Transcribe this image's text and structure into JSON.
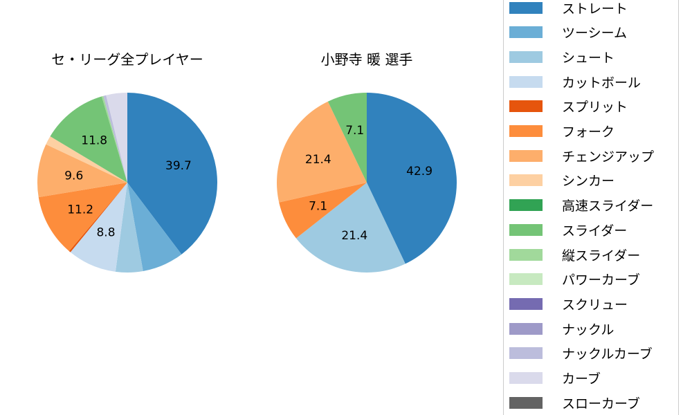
{
  "chart_data": [
    {
      "type": "pie",
      "title": "セ・リーグ全プレイヤー",
      "center": [
        184,
        264
      ],
      "radius": 130,
      "labels": [
        "ストレート",
        "ツーシーム",
        "シュート",
        "カットボール",
        "スプリット",
        "フォーク",
        "チェンジアップ",
        "シンカー",
        "高速スライダー",
        "スライダー",
        "縦スライダー",
        "パワーカーブ",
        "スクリュー",
        "ナックル",
        "ナックルカーブ",
        "カーブ",
        "スローカーブ"
      ],
      "values": [
        39.7,
        7.5,
        4.9,
        8.8,
        0.3,
        11.2,
        9.6,
        1.6,
        0.0,
        11.8,
        0.3,
        0.0,
        0.0,
        0.0,
        0.5,
        3.8,
        0.0
      ],
      "shown_labels": [
        "39.7",
        "",
        "",
        "8.8",
        "",
        "11.2",
        "9.6",
        "",
        "",
        "11.8",
        "",
        "",
        "",
        "",
        "",
        "",
        ""
      ]
    },
    {
      "type": "pie",
      "title": "小野寺 暖  選手",
      "center": [
        530,
        264
      ],
      "radius": 130,
      "labels": [
        "ストレート",
        "シュート",
        "フォーク",
        "チェンジアップ",
        "スライダー"
      ],
      "values": [
        42.9,
        21.4,
        7.1,
        21.4,
        7.1
      ],
      "colors": [
        "#3182bd",
        "#9ecae1",
        "#fd8d3c",
        "#fdae6b",
        "#74c476"
      ],
      "shown_labels": [
        "42.9",
        "21.4",
        "7.1",
        "21.4",
        "7.1"
      ]
    }
  ],
  "legend": {
    "items": [
      {
        "label": "ストレート",
        "color": "#3182bd"
      },
      {
        "label": "ツーシーム",
        "color": "#6baed6"
      },
      {
        "label": "シュート",
        "color": "#9ecae1"
      },
      {
        "label": "カットボール",
        "color": "#c6dbef"
      },
      {
        "label": "スプリット",
        "color": "#e6550d"
      },
      {
        "label": "フォーク",
        "color": "#fd8d3c"
      },
      {
        "label": "チェンジアップ",
        "color": "#fdae6b"
      },
      {
        "label": "シンカー",
        "color": "#fdd0a2"
      },
      {
        "label": "高速スライダー",
        "color": "#31a354"
      },
      {
        "label": "スライダー",
        "color": "#74c476"
      },
      {
        "label": "縦スライダー",
        "color": "#a1d99b"
      },
      {
        "label": "パワーカーブ",
        "color": "#c7e9c0"
      },
      {
        "label": "スクリュー",
        "color": "#756bb1"
      },
      {
        "label": "ナックル",
        "color": "#9e9ac8"
      },
      {
        "label": "ナックルカーブ",
        "color": "#bcbddc"
      },
      {
        "label": "カーブ",
        "color": "#dadaeb"
      },
      {
        "label": "スローカーブ",
        "color": "#636363"
      }
    ]
  },
  "titles": {
    "left": "セ・リーグ全プレイヤー",
    "right": "小野寺 暖  選手"
  }
}
